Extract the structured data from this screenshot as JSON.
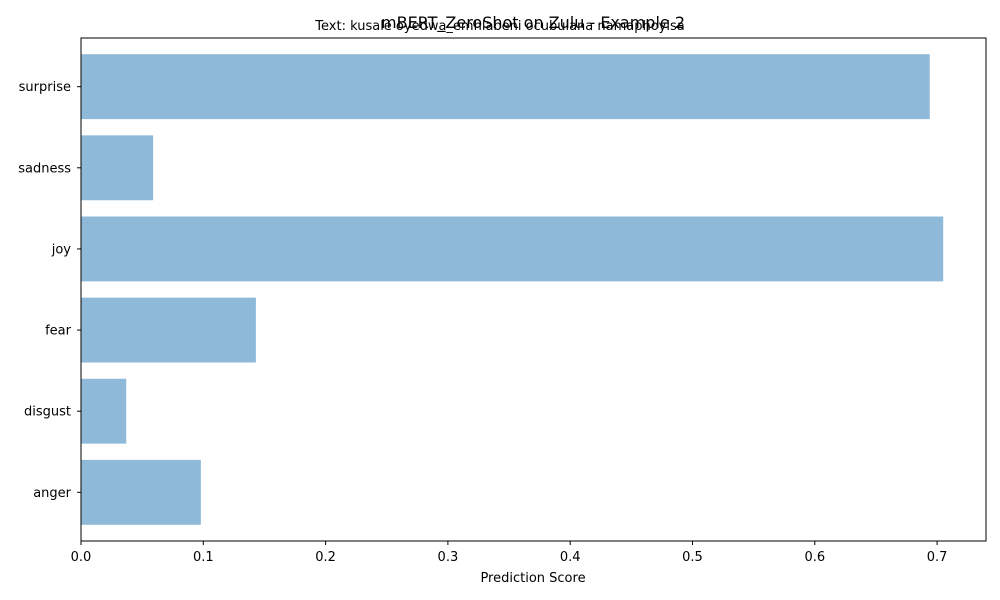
{
  "chart_data": {
    "type": "bar",
    "orientation": "horizontal",
    "title": "mBERT_ZeroShot on Zulu - Example 2",
    "subtitle": "Text: kusale oyedwa_emhlabeni ocubulana namaphoyisa",
    "xlabel": "Prediction Score",
    "ylabel": "",
    "categories": [
      "anger",
      "disgust",
      "fear",
      "joy",
      "sadness",
      "surprise"
    ],
    "values": [
      0.098,
      0.037,
      0.143,
      0.705,
      0.059,
      0.694
    ],
    "xlim": [
      0,
      0.74
    ],
    "xticks": [
      "0.0",
      "0.1",
      "0.2",
      "0.3",
      "0.4",
      "0.5",
      "0.6",
      "0.7"
    ],
    "bar_color": "#8fb9d9",
    "grid": false
  }
}
